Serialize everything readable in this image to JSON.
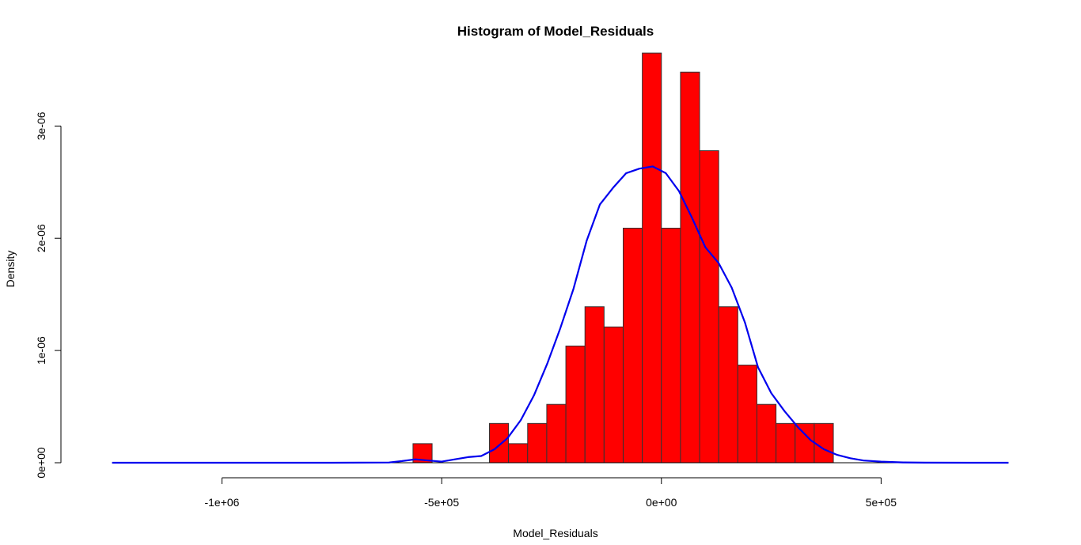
{
  "chart_data": {
    "type": "bar",
    "title": "Histogram of Model_Residuals",
    "xlabel": "Model_Residuals",
    "ylabel": "Density",
    "xlim": [
      -1280000,
      800000
    ],
    "ylim": [
      0,
      3.7e-06
    ],
    "x_ticks": [
      {
        "value": -1000000,
        "label": "-1e+06"
      },
      {
        "value": -500000,
        "label": "-5e+05"
      },
      {
        "value": 0,
        "label": "0e+00"
      },
      {
        "value": 500000,
        "label": "5e+05"
      }
    ],
    "y_ticks": [
      {
        "value": 0,
        "label": "0e+00"
      },
      {
        "value": 1e-06,
        "label": "1e-06"
      },
      {
        "value": 2e-06,
        "label": "2e-06"
      },
      {
        "value": 3e-06,
        "label": "3e-06"
      }
    ],
    "bin_width": 43478,
    "bins": [
      {
        "start": -565217,
        "density": 1.7e-07
      },
      {
        "start": -521739,
        "density": 0
      },
      {
        "start": -478261,
        "density": 0
      },
      {
        "start": -434783,
        "density": 0
      },
      {
        "start": -391304,
        "density": 3.5e-07
      },
      {
        "start": -347826,
        "density": 1.7e-07
      },
      {
        "start": -304348,
        "density": 3.5e-07
      },
      {
        "start": -260870,
        "density": 5.2e-07
      },
      {
        "start": -217391,
        "density": 1.04e-06
      },
      {
        "start": -173913,
        "density": 1.39e-06
      },
      {
        "start": -130435,
        "density": 1.21e-06
      },
      {
        "start": -86957,
        "density": 2.09e-06
      },
      {
        "start": -43478,
        "density": 3.65e-06
      },
      {
        "start": 0,
        "density": 2.09e-06
      },
      {
        "start": 43478,
        "density": 3.48e-06
      },
      {
        "start": 86957,
        "density": 2.78e-06
      },
      {
        "start": 130435,
        "density": 1.39e-06
      },
      {
        "start": 173913,
        "density": 8.7e-07
      },
      {
        "start": 217391,
        "density": 5.2e-07
      },
      {
        "start": 260870,
        "density": 3.5e-07
      },
      {
        "start": 304348,
        "density": 3.5e-07
      },
      {
        "start": 347826,
        "density": 3.5e-07
      }
    ],
    "density_curve": {
      "x": [
        -1250000,
        -1000000,
        -750000,
        -620000,
        -590000,
        -560000,
        -530000,
        -500000,
        -470000,
        -440000,
        -410000,
        -380000,
        -350000,
        -320000,
        -290000,
        -260000,
        -230000,
        -200000,
        -170000,
        -140000,
        -110000,
        -80000,
        -50000,
        -20000,
        10000,
        40000,
        70000,
        100000,
        130000,
        160000,
        190000,
        220000,
        250000,
        280000,
        310000,
        340000,
        370000,
        400000,
        430000,
        460000,
        500000,
        550000,
        600000,
        700000,
        790000
      ],
      "y": [
        0,
        0,
        0,
        2e-09,
        1.5e-08,
        3e-08,
        2e-08,
        1e-08,
        3e-08,
        5e-08,
        6e-08,
        1.2e-07,
        2.2e-07,
        3.8e-07,
        6e-07,
        8.8e-07,
        1.2e-06,
        1.55e-06,
        1.98e-06,
        2.3e-06,
        2.45e-06,
        2.58e-06,
        2.62e-06,
        2.64e-06,
        2.58e-06,
        2.42e-06,
        2.18e-06,
        1.92e-06,
        1.78e-06,
        1.56e-06,
        1.25e-06,
        8.5e-07,
        6.2e-07,
        4.6e-07,
        3.2e-07,
        2e-07,
        1.2e-07,
        7e-08,
        4e-08,
        2e-08,
        1e-08,
        3e-09,
        1e-09,
        0,
        0
      ]
    },
    "bar_color": "#ff0000",
    "curve_color": "#0000ee",
    "grid": false
  }
}
